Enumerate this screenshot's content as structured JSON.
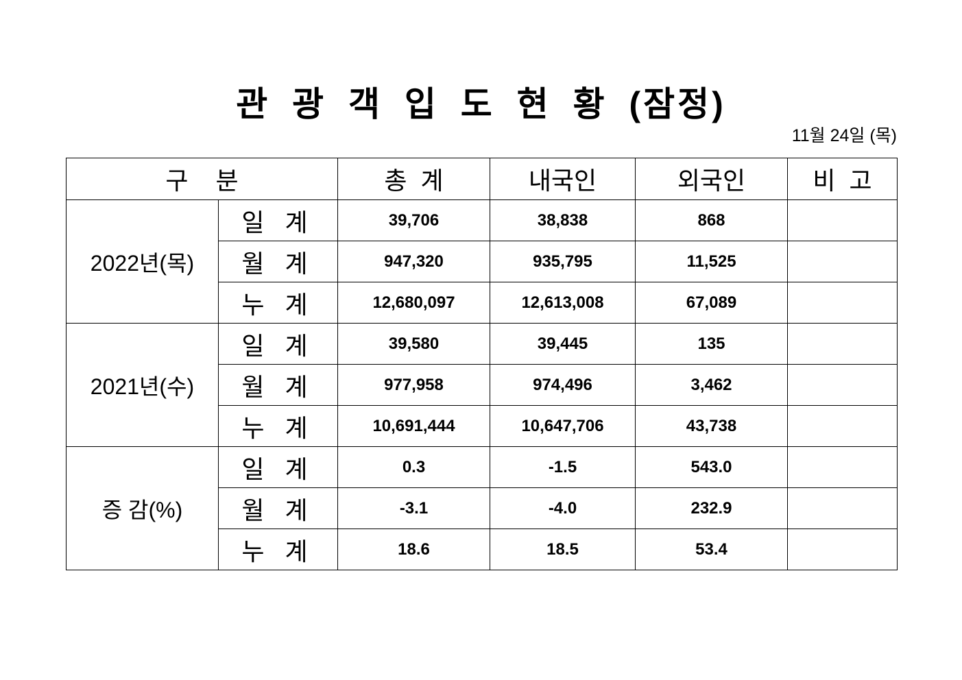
{
  "title": "관 광 객 입 도 현 황 (잠정)",
  "date": "11월 24일 (목)",
  "headers": [
    "구 분",
    "총  계",
    "내국인",
    "외국인",
    "비  고"
  ],
  "groups": [
    {
      "label": "2022년(목)",
      "rows": [
        {
          "sub": "일 계",
          "total": "39,706",
          "domestic": "38,838",
          "foreign": "868",
          "note": ""
        },
        {
          "sub": "월 계",
          "total": "947,320",
          "domestic": "935,795",
          "foreign": "11,525",
          "note": ""
        },
        {
          "sub": "누 계",
          "total": "12,680,097",
          "domestic": "12,613,008",
          "foreign": "67,089",
          "note": ""
        }
      ]
    },
    {
      "label": "2021년(수)",
      "rows": [
        {
          "sub": "일 계",
          "total": "39,580",
          "domestic": "39,445",
          "foreign": "135",
          "note": ""
        },
        {
          "sub": "월 계",
          "total": "977,958",
          "domestic": "974,496",
          "foreign": "3,462",
          "note": ""
        },
        {
          "sub": "누 계",
          "total": "10,691,444",
          "domestic": "10,647,706",
          "foreign": "43,738",
          "note": ""
        }
      ]
    },
    {
      "label": "증 감(%)",
      "rows": [
        {
          "sub": "일 계",
          "total": "0.3",
          "domestic": "-1.5",
          "foreign": "543.0",
          "note": ""
        },
        {
          "sub": "월 계",
          "total": "-3.1",
          "domestic": "-4.0",
          "foreign": "232.9",
          "note": ""
        },
        {
          "sub": "누 계",
          "total": "18.6",
          "domestic": "18.5",
          "foreign": "53.4",
          "note": ""
        }
      ]
    }
  ]
}
